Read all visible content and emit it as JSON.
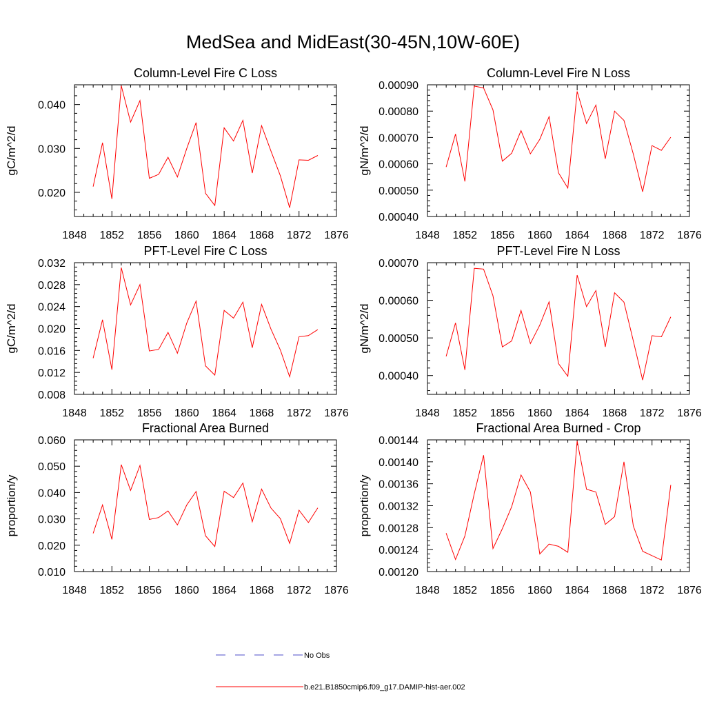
{
  "figure": {
    "title": "MedSea and MidEast(30-45N,10W-60E)",
    "line_color": "#ff0000",
    "obs_color": "#4b4bc8",
    "legend": [
      {
        "label": "No Obs",
        "style": "dashed",
        "color": "#4b4bc8"
      },
      {
        "label": "b.e21.B1850cmip6.f09_g17.DAMIP-hist-aer.002",
        "style": "solid",
        "color": "#ff0000"
      }
    ]
  },
  "chart_data": [
    {
      "type": "line",
      "title": "Column-Level Fire C Loss",
      "ylabel": "gC/m^2/d",
      "xlim": [
        1848,
        1876
      ],
      "ylim": [
        0.0145,
        0.0445
      ],
      "xticks": [
        "1848",
        "1852",
        "1856",
        "1860",
        "1864",
        "1868",
        "1872",
        "1876"
      ],
      "yticks": [
        "0.020",
        "0.030",
        "0.040"
      ],
      "x": [
        1850,
        1851,
        1852,
        1853,
        1854,
        1855,
        1856,
        1857,
        1858,
        1859,
        1860,
        1861,
        1862,
        1863,
        1864,
        1865,
        1866,
        1867,
        1868,
        1869,
        1870,
        1871,
        1872,
        1873,
        1874
      ],
      "series": [
        {
          "values": [
            0.0213,
            0.0313,
            0.0185,
            0.0443,
            0.036,
            0.0409,
            0.0232,
            0.0241,
            0.028,
            0.0235,
            0.03,
            0.0359,
            0.0198,
            0.017,
            0.0347,
            0.0317,
            0.0364,
            0.0244,
            0.0352,
            0.0294,
            0.0238,
            0.0165,
            0.0274,
            0.0273,
            0.0284
          ]
        }
      ]
    },
    {
      "type": "line",
      "title": "Column-Level Fire N Loss",
      "ylabel": "gN/m^2/d",
      "xlim": [
        1848,
        1876
      ],
      "ylim": [
        0.0004,
        0.0009
      ],
      "xticks": [
        "1848",
        "1852",
        "1856",
        "1860",
        "1864",
        "1868",
        "1872",
        "1876"
      ],
      "yticks": [
        "0.00040",
        "0.00050",
        "0.00060",
        "0.00070",
        "0.00080",
        "0.00090"
      ],
      "x": [
        1850,
        1851,
        1852,
        1853,
        1854,
        1855,
        1856,
        1857,
        1858,
        1859,
        1860,
        1861,
        1862,
        1863,
        1864,
        1865,
        1866,
        1867,
        1868,
        1869,
        1870,
        1871,
        1872,
        1873,
        1874
      ],
      "series": [
        {
          "values": [
            0.000588,
            0.000713,
            0.000533,
            0.000895,
            0.000888,
            0.000805,
            0.00061,
            0.00064,
            0.000726,
            0.000638,
            0.000693,
            0.000779,
            0.000566,
            0.000508,
            0.000875,
            0.000753,
            0.000823,
            0.000619,
            0.0008,
            0.000765,
            0.000637,
            0.000494,
            0.000669,
            0.000651,
            0.000701
          ]
        }
      ]
    },
    {
      "type": "line",
      "title": "PFT-Level Fire C Loss",
      "ylabel": "gC/m^2/d",
      "xlim": [
        1848,
        1876
      ],
      "ylim": [
        0.008,
        0.032
      ],
      "xticks": [
        "1848",
        "1852",
        "1856",
        "1860",
        "1864",
        "1868",
        "1872",
        "1876"
      ],
      "yticks": [
        "0.008",
        "0.012",
        "0.016",
        "0.020",
        "0.024",
        "0.028",
        "0.032"
      ],
      "x": [
        1850,
        1851,
        1852,
        1853,
        1854,
        1855,
        1856,
        1857,
        1858,
        1859,
        1860,
        1861,
        1862,
        1863,
        1864,
        1865,
        1866,
        1867,
        1868,
        1869,
        1870,
        1871,
        1872,
        1873,
        1874
      ],
      "series": [
        {
          "values": [
            0.0146,
            0.0216,
            0.0125,
            0.0311,
            0.0243,
            0.028,
            0.0159,
            0.0162,
            0.0193,
            0.0155,
            0.021,
            0.025,
            0.0132,
            0.0115,
            0.0233,
            0.0219,
            0.0248,
            0.0165,
            0.0244,
            0.0199,
            0.0161,
            0.0112,
            0.0185,
            0.0187,
            0.0198
          ]
        }
      ]
    },
    {
      "type": "line",
      "title": "PFT-Level Fire N Loss",
      "ylabel": "gN/m^2/d",
      "xlim": [
        1848,
        1876
      ],
      "ylim": [
        0.00035,
        0.0007
      ],
      "xticks": [
        "1848",
        "1852",
        "1856",
        "1860",
        "1864",
        "1868",
        "1872",
        "1876"
      ],
      "yticks": [
        "0.00040",
        "0.00050",
        "0.00060",
        "0.00070"
      ],
      "x": [
        1850,
        1851,
        1852,
        1853,
        1854,
        1855,
        1856,
        1857,
        1858,
        1859,
        1860,
        1861,
        1862,
        1863,
        1864,
        1865,
        1866,
        1867,
        1868,
        1869,
        1870,
        1871,
        1872,
        1873,
        1874
      ],
      "series": [
        {
          "values": [
            0.000451,
            0.00054,
            0.000415,
            0.000685,
            0.000683,
            0.000612,
            0.000476,
            0.000492,
            0.000573,
            0.000485,
            0.000534,
            0.000596,
            0.000432,
            0.000398,
            0.000667,
            0.000583,
            0.000626,
            0.000476,
            0.00062,
            0.000595,
            0.000492,
            0.000388,
            0.000506,
            0.000503,
            0.000556
          ]
        }
      ]
    },
    {
      "type": "line",
      "title": "Fractional Area Burned",
      "ylabel": "proportion/y",
      "xlim": [
        1848,
        1876
      ],
      "ylim": [
        0.01,
        0.06
      ],
      "xticks": [
        "1848",
        "1852",
        "1856",
        "1860",
        "1864",
        "1868",
        "1872",
        "1876"
      ],
      "yticks": [
        "0.010",
        "0.020",
        "0.030",
        "0.040",
        "0.050",
        "0.060"
      ],
      "x": [
        1850,
        1851,
        1852,
        1853,
        1854,
        1855,
        1856,
        1857,
        1858,
        1859,
        1860,
        1861,
        1862,
        1863,
        1864,
        1865,
        1866,
        1867,
        1868,
        1869,
        1870,
        1871,
        1872,
        1873,
        1874
      ],
      "series": [
        {
          "values": [
            0.0245,
            0.0353,
            0.0222,
            0.0506,
            0.0408,
            0.0503,
            0.0298,
            0.0305,
            0.033,
            0.0277,
            0.0353,
            0.0404,
            0.0236,
            0.0195,
            0.0405,
            0.0381,
            0.0436,
            0.0289,
            0.0413,
            0.0341,
            0.0301,
            0.0207,
            0.0333,
            0.0286,
            0.0342
          ]
        }
      ]
    },
    {
      "type": "line",
      "title": "Fractional Area Burned - Crop",
      "ylabel": "proportion/y",
      "xlim": [
        1848,
        1876
      ],
      "ylim": [
        0.0012,
        0.00144
      ],
      "xticks": [
        "1848",
        "1852",
        "1856",
        "1860",
        "1864",
        "1868",
        "1872",
        "1876"
      ],
      "yticks": [
        "0.00120",
        "0.00124",
        "0.00128",
        "0.00132",
        "0.00136",
        "0.00140",
        "0.00144"
      ],
      "x": [
        1850,
        1851,
        1852,
        1853,
        1854,
        1855,
        1856,
        1857,
        1858,
        1859,
        1860,
        1861,
        1862,
        1863,
        1864,
        1865,
        1866,
        1867,
        1868,
        1869,
        1870,
        1871,
        1872,
        1873,
        1874
      ],
      "series": [
        {
          "values": [
            0.00127,
            0.001222,
            0.001265,
            0.001342,
            0.001412,
            0.001242,
            0.001278,
            0.001318,
            0.001376,
            0.001345,
            0.001232,
            0.00125,
            0.001246,
            0.001235,
            0.001438,
            0.00135,
            0.001345,
            0.001286,
            0.0013,
            0.0014,
            0.001283,
            0.001237,
            0.001229,
            0.001221,
            0.001358
          ]
        }
      ]
    }
  ]
}
